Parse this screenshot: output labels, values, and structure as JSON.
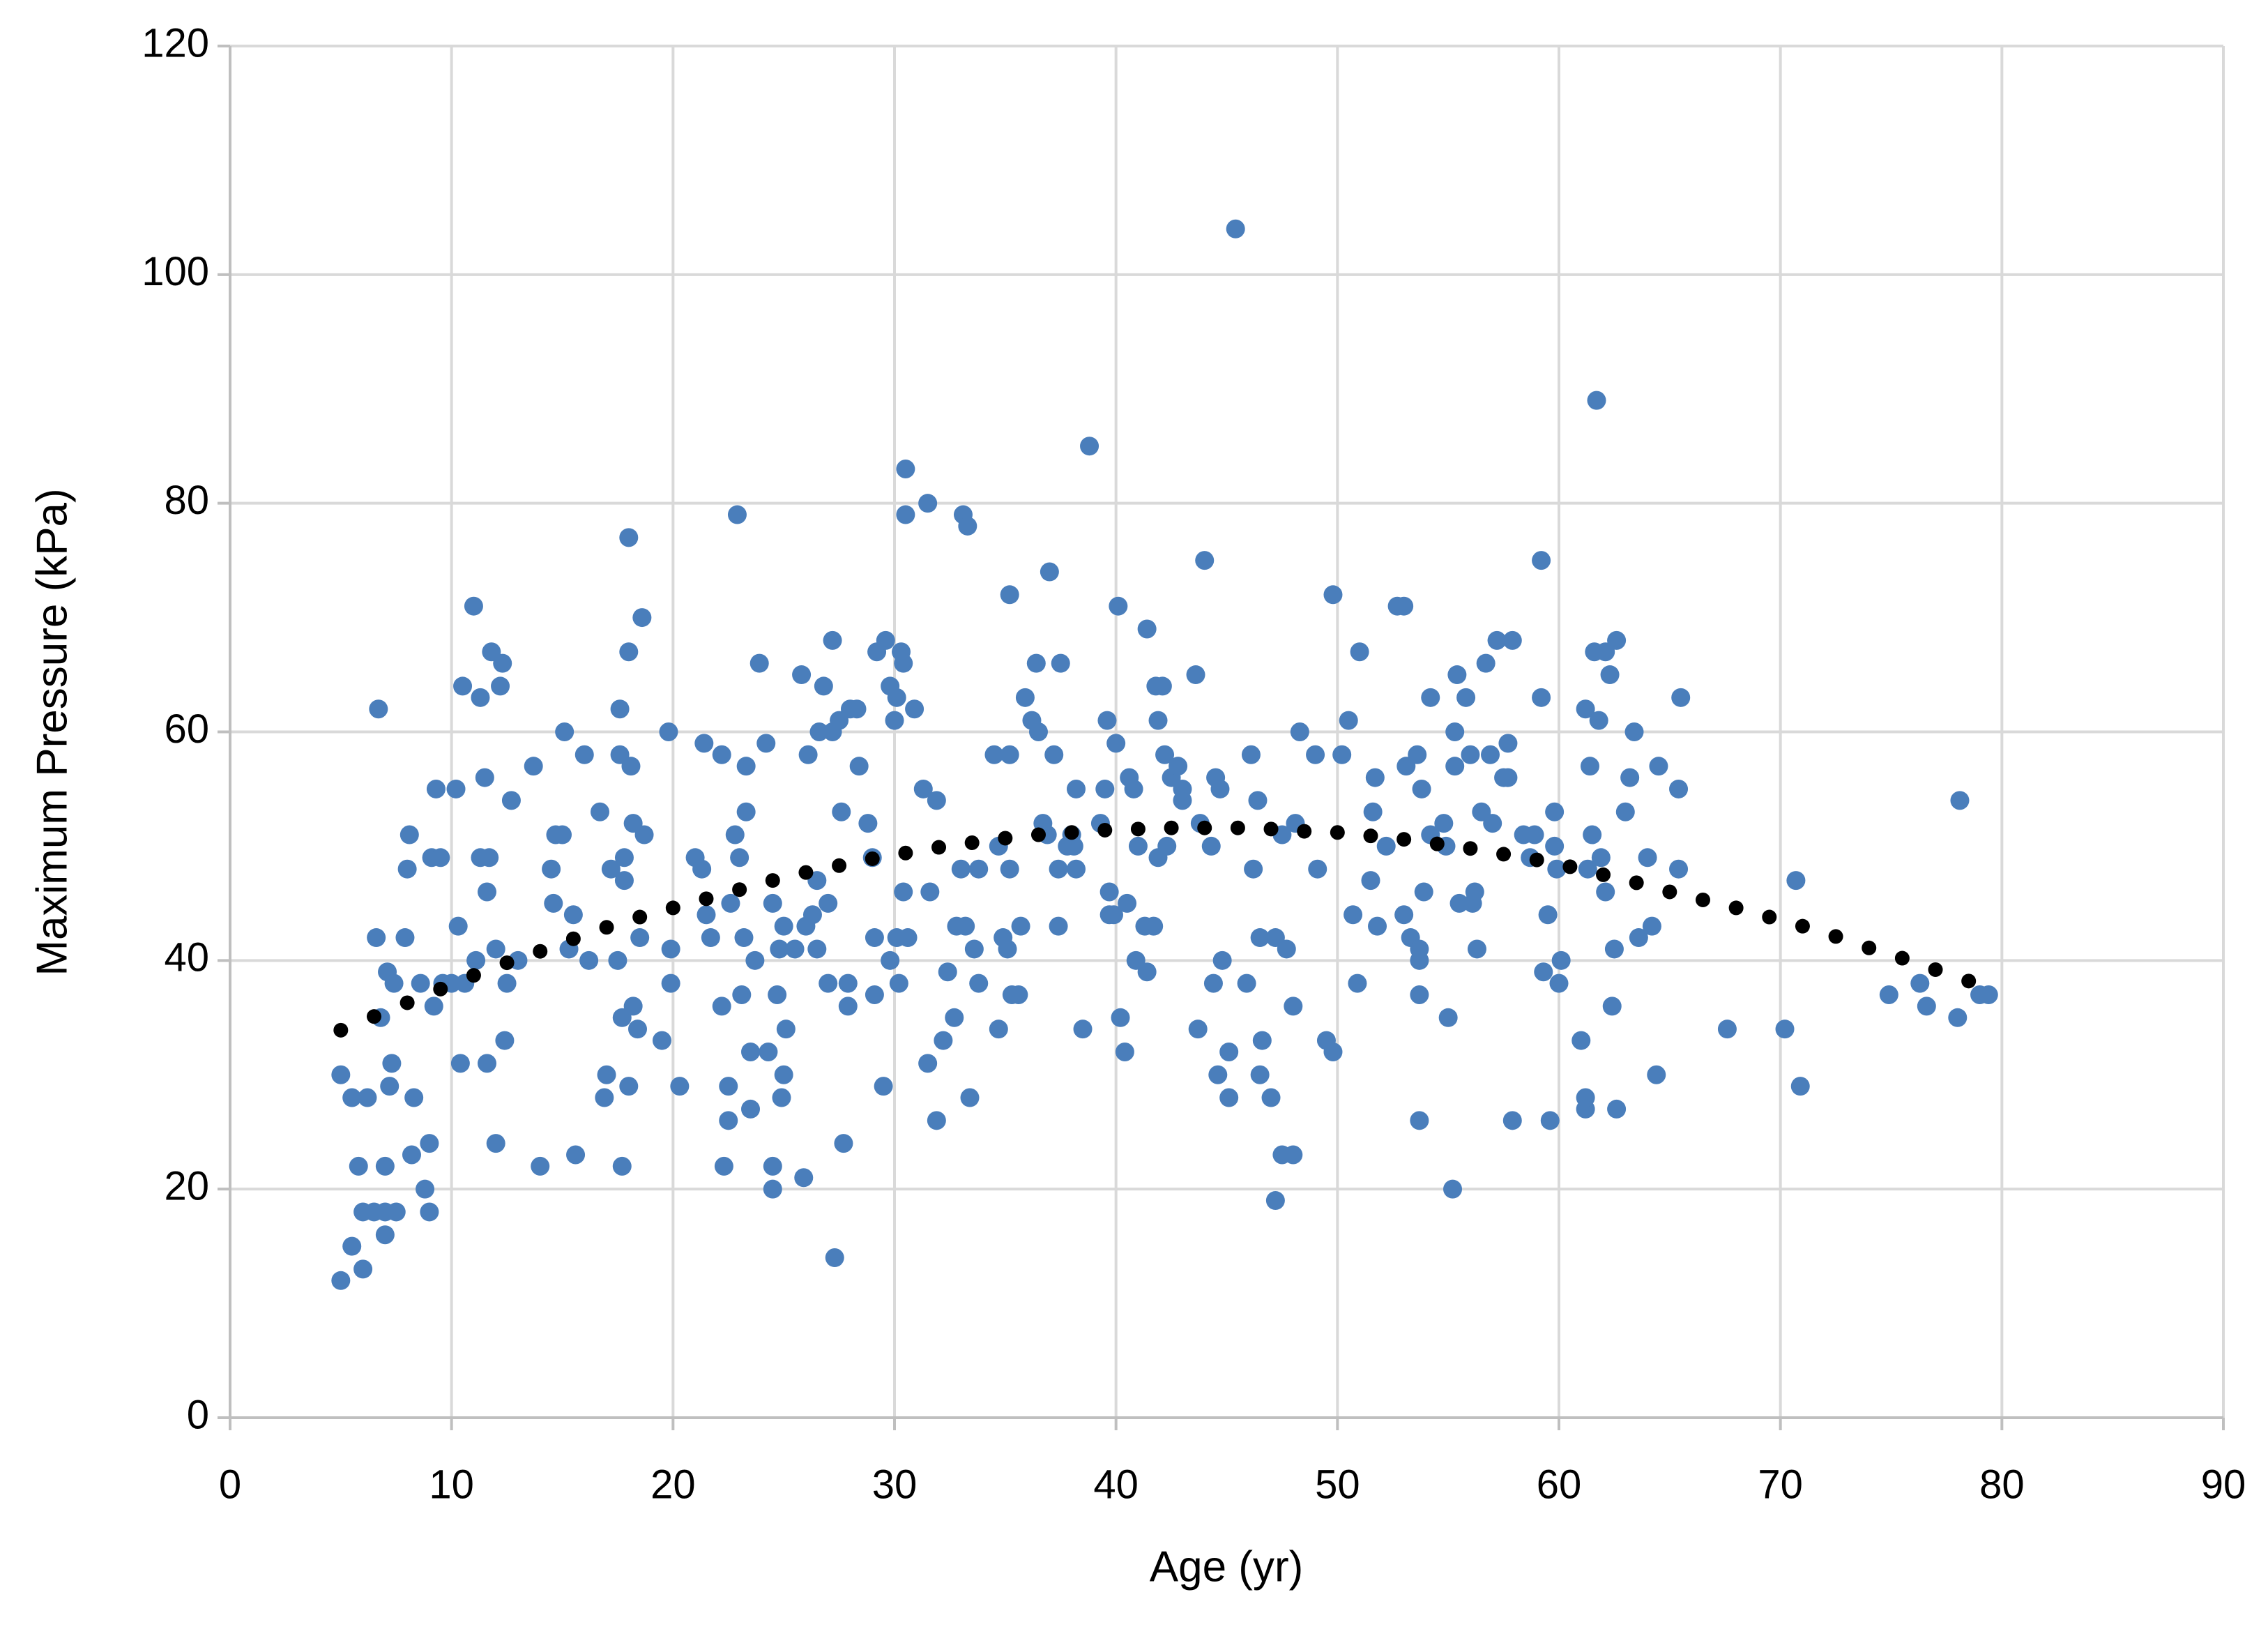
{
  "chart_data": {
    "type": "scatter",
    "x_label": "Age (yr)",
    "y_label": "Maximum Pressure (kPa)",
    "xlim": [
      0,
      90
    ],
    "xticks": [
      0,
      10,
      20,
      30,
      40,
      50,
      60,
      70,
      80,
      90
    ],
    "ylim": [
      0,
      120
    ],
    "yticks": [
      0,
      20,
      40,
      60,
      80,
      100,
      120
    ],
    "grid": true,
    "series": [
      {
        "color": "#4a7ebb",
        "marker": "circle",
        "x": [
          5,
          5,
          5.5,
          5.5,
          5.8,
          6,
          6,
          6.2,
          6.5,
          6.6,
          6.7,
          6.8,
          7,
          7,
          7,
          7.1,
          7.2,
          7.3,
          7.4,
          7.5,
          7.9,
          8,
          8.1,
          8.2,
          8.3,
          8.6,
          8.8,
          9,
          9,
          9.1,
          9.2,
          9.3,
          9.5,
          9.6,
          10,
          10.2,
          10.3,
          10.4,
          10.5,
          10.6,
          11,
          11.1,
          11.3,
          11.3,
          11.5,
          11.6,
          11.6,
          11.7,
          11.8,
          12,
          12,
          12.2,
          12.3,
          12.4,
          12.5,
          12.7,
          13,
          13.7,
          14,
          14.5,
          14.6,
          14.7,
          15,
          15.1,
          15.3,
          15.5,
          15.6,
          16,
          16.2,
          16.7,
          16.9,
          17,
          17.2,
          17.5,
          17.6,
          17.6,
          17.7,
          17.7,
          17.8,
          17.8,
          18,
          18,
          18,
          18.1,
          18.2,
          18.2,
          18.4,
          18.5,
          18.6,
          18.7,
          19.5,
          19.8,
          19.9,
          19.9,
          20.3,
          21,
          21.3,
          21.4,
          21.5,
          21.7,
          22.2,
          22.2,
          22.3,
          22.5,
          22.5,
          22.6,
          22.8,
          22.9,
          23,
          23.1,
          23.2,
          23.3,
          23.3,
          23.5,
          23.5,
          23.7,
          23.9,
          24.2,
          24.3,
          24.5,
          24.5,
          24.5,
          24.7,
          24.8,
          24.9,
          25,
          25,
          25.1,
          25.5,
          25.8,
          25.9,
          26,
          26.1,
          26.3,
          26.5,
          26.5,
          26.6,
          26.8,
          27,
          27,
          27.2,
          27.2,
          27.3,
          27.5,
          27.6,
          27.7,
          27.9,
          27.9,
          28,
          28.3,
          28.4,
          28.8,
          29,
          29.1,
          29.1,
          29.2,
          29.5,
          29.6,
          29.8,
          29.8,
          30,
          30.1,
          30.1,
          30.2,
          30.3,
          30.4,
          30.4,
          30.5,
          30.5,
          30.6,
          30.9,
          31.3,
          31.5,
          31.5,
          31.6,
          31.9,
          31.9,
          32.2,
          32.4,
          32.7,
          32.8,
          33,
          33.1,
          33.2,
          33.3,
          33.4,
          33.6,
          33.8,
          33.8,
          34.5,
          34.7,
          34.7,
          34.9,
          35.1,
          35.2,
          35.2,
          35.2,
          35.3,
          35.6,
          35.7,
          35.9,
          36.2,
          36.4,
          36.5,
          36.7,
          36.9,
          37,
          37.2,
          37.4,
          37.4,
          37.5,
          37.8,
          38,
          38.1,
          38.2,
          38.2,
          38.5,
          38.8,
          39.3,
          39.5,
          39.6,
          39.7,
          39.7,
          39.9,
          40,
          40.1,
          40.2,
          40.4,
          40.5,
          40.6,
          40.8,
          40.9,
          41,
          41.3,
          41.4,
          41.4,
          41.7,
          41.8,
          41.9,
          41.9,
          42.1,
          42.2,
          42.5,
          42.3,
          42.8,
          43,
          43,
          43.6,
          43.7,
          43.8,
          44,
          44.3,
          44.4,
          44.5,
          44.6,
          44.7,
          44.8,
          45.1,
          45.1,
          45.4,
          45.9,
          46.1,
          46.2,
          46.4,
          46.5,
          46.5,
          46.6,
          47,
          47.2,
          47.2,
          47.5,
          47.5,
          47.7,
          48,
          48,
          48.1,
          48.3,
          49,
          49.1,
          49.5,
          49.8,
          49.8,
          50.2,
          50.5,
          50.7,
          50.9,
          51,
          51.5,
          51.6,
          51.7,
          51.8,
          52.2,
          52.7,
          53,
          53,
          53.1,
          53.3,
          53.6,
          53.7,
          53.7,
          53.7,
          53.7,
          53.8,
          53.9,
          54.2,
          54.2,
          54.8,
          54.9,
          55,
          55.2,
          55.3,
          55.3,
          55.4,
          55.5,
          55.8,
          56,
          56.1,
          56.2,
          56.3,
          56.5,
          56.7,
          56.9,
          57,
          57.2,
          57.5,
          57.7,
          57.7,
          57.9,
          57.9,
          58.4,
          58.7,
          58.9,
          59.2,
          59.2,
          59.3,
          59.5,
          59.6,
          59.8,
          59.8,
          59.9,
          60,
          60.1,
          61,
          61.2,
          61.2,
          61.2,
          61.3,
          61.4,
          61.5,
          61.6,
          61.7,
          61.8,
          61.9,
          62.1,
          62.1,
          62.3,
          62.4,
          62.5,
          62.6,
          62.6,
          63,
          63.2,
          63.4,
          63.6,
          64,
          64.2,
          64.4,
          64.5,
          65.4,
          65.4,
          65.5,
          67.6,
          70.2,
          70.7,
          70.9,
          74.9,
          76.3,
          76.6,
          78.1,
          78,
          79,
          79.4
        ],
        "values": [
          12,
          30,
          15,
          28,
          22,
          18,
          13,
          28,
          18,
          42,
          62,
          35,
          18,
          16,
          22,
          39,
          29,
          31,
          38,
          18,
          42,
          48,
          51,
          23,
          28,
          38,
          20,
          24,
          18,
          49,
          36,
          55,
          49,
          38,
          38,
          55,
          43,
          31,
          64,
          38,
          71,
          40,
          49,
          63,
          56,
          46,
          31,
          49,
          67,
          41,
          24,
          64,
          66,
          33,
          38,
          54,
          40,
          57,
          22,
          48,
          45,
          51,
          51,
          60,
          41,
          44,
          23,
          58,
          40,
          53,
          28,
          30,
          48,
          40,
          62,
          58,
          22,
          35,
          49,
          47,
          67,
          77,
          29,
          57,
          36,
          52,
          34,
          42,
          70,
          51,
          33,
          60,
          41,
          38,
          29,
          49,
          48,
          59,
          44,
          42,
          58,
          36,
          22,
          29,
          26,
          45,
          51,
          79,
          49,
          37,
          42,
          57,
          53,
          27,
          32,
          40,
          66,
          59,
          32,
          20,
          45,
          22,
          37,
          41,
          28,
          43,
          30,
          34,
          41,
          65,
          21,
          43,
          58,
          44,
          41,
          47,
          60,
          64,
          38,
          45,
          60,
          68,
          14,
          61,
          53,
          24,
          36,
          38,
          62,
          62,
          57,
          52,
          49,
          42,
          37,
          67,
          29,
          68,
          40,
          64,
          61,
          63,
          42,
          38,
          67,
          46,
          66,
          79,
          83,
          42,
          62,
          55,
          80,
          31,
          46,
          54,
          26,
          33,
          39,
          35,
          43,
          48,
          79,
          43,
          78,
          28,
          41,
          38,
          48,
          58,
          34,
          50,
          42,
          41,
          72,
          58,
          48,
          37,
          37,
          43,
          63,
          61,
          66,
          60,
          52,
          51,
          74,
          58,
          48,
          43,
          66,
          50,
          51,
          50,
          55,
          48,
          34,
          85,
          52,
          55,
          61,
          44,
          46,
          44,
          59,
          71,
          35,
          32,
          45,
          56,
          55,
          40,
          50,
          43,
          39,
          69,
          43,
          64,
          61,
          49,
          64,
          58,
          56,
          50,
          57,
          55,
          54,
          65,
          34,
          52,
          75,
          50,
          38,
          56,
          30,
          55,
          40,
          28,
          32,
          104,
          38,
          58,
          48,
          54,
          42,
          30,
          33,
          28,
          42,
          19,
          51,
          23,
          41,
          23,
          36,
          52,
          60,
          58,
          48,
          33,
          32,
          72,
          58,
          61,
          44,
          38,
          67,
          47,
          53,
          56,
          43,
          50,
          71,
          71,
          44,
          57,
          42,
          58,
          41,
          26,
          37,
          40,
          55,
          46,
          63,
          51,
          52,
          50,
          35,
          20,
          57,
          60,
          65,
          45,
          63,
          58,
          45,
          46,
          41,
          53,
          66,
          58,
          52,
          68,
          56,
          59,
          56,
          68,
          26,
          51,
          49,
          51,
          75,
          63,
          39,
          44,
          26,
          53,
          50,
          48,
          38,
          40,
          33,
          27,
          28,
          62,
          48,
          57,
          51,
          67,
          89,
          61,
          49,
          67,
          46,
          65,
          36,
          41,
          27,
          68,
          53,
          56,
          60,
          42,
          49,
          43,
          30,
          57,
          55,
          48,
          63,
          34,
          34,
          47,
          29,
          37,
          38,
          36,
          54,
          35,
          37,
          37
        ]
      },
      {
        "color": "#000000",
        "marker": "dot",
        "line_style": "dotted",
        "x": [
          5,
          6.5,
          8,
          9.5,
          11,
          12.5,
          14,
          15.5,
          17,
          18.5,
          20,
          21.5,
          23,
          24.5,
          26,
          27.5,
          29,
          30.5,
          32,
          33.5,
          35,
          36.5,
          38,
          39.5,
          41,
          42.5,
          44,
          45.5,
          47,
          48.5,
          50,
          51.5,
          53,
          54.5,
          56,
          57.5,
          59,
          60.5,
          62,
          63.5,
          65,
          66.5,
          68,
          69.5,
          71,
          72.5,
          74,
          75.5,
          77,
          78.5
        ],
        "values": [
          33.9,
          35.1,
          36.3,
          37.5,
          38.7,
          39.8,
          40.8,
          41.9,
          42.9,
          43.8,
          44.6,
          45.4,
          46.2,
          47.0,
          47.7,
          48.3,
          48.9,
          49.4,
          49.9,
          50.3,
          50.7,
          51.0,
          51.2,
          51.4,
          51.5,
          51.6,
          51.6,
          51.6,
          51.5,
          51.3,
          51.2,
          50.9,
          50.6,
          50.2,
          49.8,
          49.3,
          48.8,
          48.2,
          47.5,
          46.8,
          46.0,
          45.3,
          44.6,
          43.8,
          43.0,
          42.1,
          41.1,
          40.2,
          39.2,
          38.2
        ]
      }
    ]
  }
}
